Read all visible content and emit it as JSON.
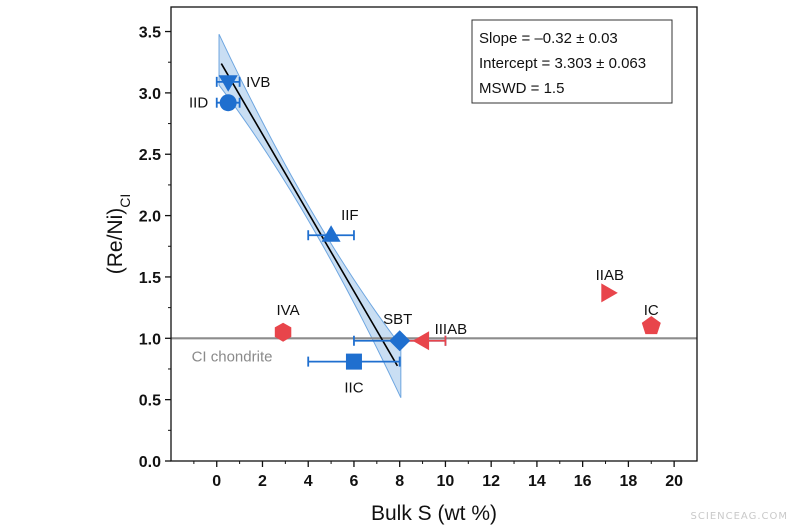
{
  "chart_data": {
    "type": "scatter",
    "title": "",
    "xlabel": "Bulk S (wt %)",
    "ylabel_main": "(Re/Ni)",
    "ylabel_sub": "CI",
    "xlim": [
      -2,
      21
    ],
    "ylim": [
      0.0,
      3.7
    ],
    "xticks": [
      0,
      2,
      4,
      6,
      8,
      10,
      12,
      14,
      16,
      18,
      20
    ],
    "yticks": [
      0.0,
      0.5,
      1.0,
      1.5,
      2.0,
      2.5,
      3.0,
      3.5
    ],
    "ytick_labels": [
      "0.0",
      "0.5",
      "1.0",
      "1.5",
      "2.0",
      "2.5",
      "3.0",
      "3.5"
    ],
    "grid": false,
    "reference_line": {
      "y": 1.0,
      "label": "CI chondrite",
      "color": "#8c8c8c"
    },
    "regression": {
      "slope": -0.32,
      "intercept": 3.303,
      "x_range": [
        0.2,
        7.9
      ],
      "color": "#000000",
      "band_color": "#9cc3ea"
    },
    "stats_box": [
      "Slope = –0.32 ± 0.03",
      "Intercept = 3.303 ± 0.063",
      "MSWD = 1.5"
    ],
    "points": [
      {
        "name": "IVB",
        "x": 0.5,
        "y": 3.09,
        "xerr": 0.5,
        "shape": "triangle-down",
        "color": "#1f6fcf"
      },
      {
        "name": "IID",
        "x": 0.5,
        "y": 2.92,
        "xerr": 0.5,
        "shape": "circle",
        "color": "#1f6fcf"
      },
      {
        "name": "IIF",
        "x": 5.0,
        "y": 1.84,
        "xerr": 1.0,
        "shape": "triangle-up",
        "color": "#1f6fcf"
      },
      {
        "name": "SBT",
        "x": 8.0,
        "y": 0.98,
        "xerr": 2.0,
        "shape": "diamond",
        "color": "#1f6fcf"
      },
      {
        "name": "IIC",
        "x": 6.0,
        "y": 0.81,
        "xerr": 2.0,
        "shape": "square",
        "color": "#1f6fcf"
      },
      {
        "name": "IVA",
        "x": 2.9,
        "y": 1.05,
        "xerr": 0,
        "shape": "hexagon",
        "color": "#e8454b"
      },
      {
        "name": "IIIAB",
        "x": 9.0,
        "y": 0.98,
        "xerr": 1.0,
        "shape": "triangle-left",
        "color": "#e8454b"
      },
      {
        "name": "IIAB",
        "x": 17.1,
        "y": 1.37,
        "xerr": 0,
        "shape": "triangle-right",
        "color": "#e8454b"
      },
      {
        "name": "IC",
        "x": 19.0,
        "y": 1.1,
        "xerr": 0,
        "shape": "pentagon",
        "color": "#e8454b"
      }
    ]
  },
  "watermark": "SCIENCEAG.COM"
}
